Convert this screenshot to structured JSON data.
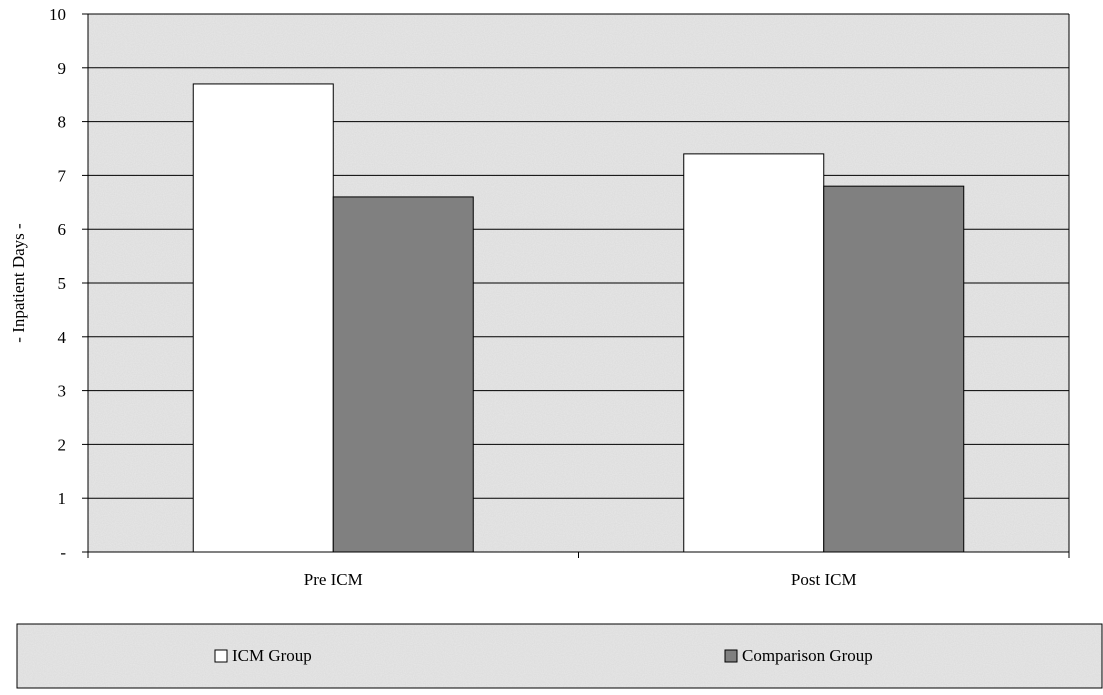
{
  "chart_data": {
    "type": "bar",
    "title": "",
    "xlabel": "",
    "ylabel": "- Inpatient Days -",
    "ylim": [
      0,
      10
    ],
    "yticks": [
      "-",
      "1",
      "2",
      "3",
      "4",
      "5",
      "6",
      "7",
      "8",
      "9",
      "10"
    ],
    "categories": [
      "Pre ICM",
      "Post ICM"
    ],
    "series": [
      {
        "name": "ICM Group",
        "values": [
          8.7,
          7.4
        ],
        "color": "#ffffff"
      },
      {
        "name": "Comparison Group",
        "values": [
          6.6,
          6.8
        ],
        "color": "#808080"
      }
    ],
    "grid": true,
    "legend_position": "bottom",
    "plot_background": "speckled light gray"
  }
}
